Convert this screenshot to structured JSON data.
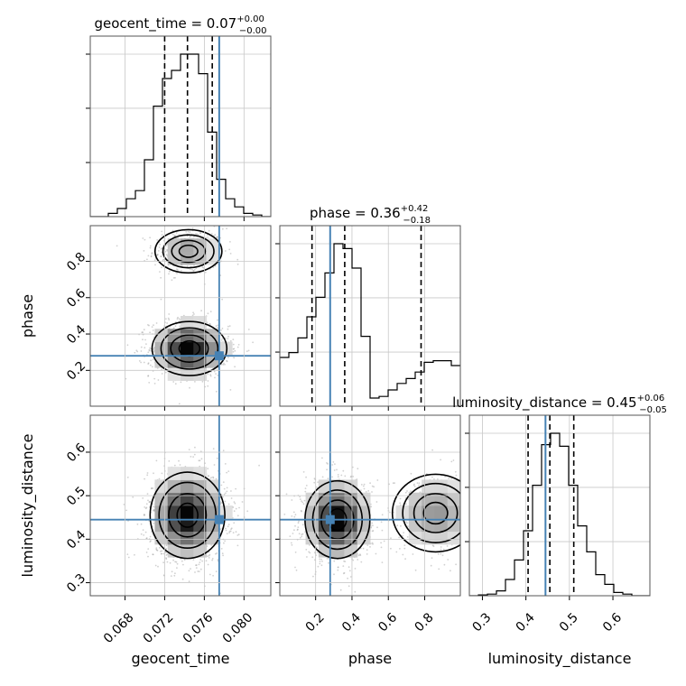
{
  "chart_data": {
    "type": "corner",
    "colors": {
      "truth": "#4682b4",
      "hist": "#000000",
      "grid": "#c8c8c8",
      "points": "#9a9a9a"
    },
    "parameters": [
      {
        "name": "geocent_time",
        "xlabel": "geocent_time",
        "ylabel": "",
        "range": [
          0.0645,
          0.0827
        ],
        "ticks": [
          0.068,
          0.072,
          0.076,
          0.08
        ],
        "tick_labels": [
          "0.068",
          "0.072",
          "0.076",
          "0.080"
        ],
        "truth": 0.0775,
        "quantiles": [
          0.072,
          0.0743,
          0.0768
        ],
        "title": {
          "main": "geocent_time = 0.07",
          "sup": "+0.00",
          "sub": "−0.00"
        },
        "hist_edges_range": [
          0.0645,
          0.0827
        ],
        "hist_values": [
          0,
          0,
          0.02,
          0.05,
          0.11,
          0.16,
          0.35,
          0.68,
          0.85,
          0.9,
          1.0,
          1.0,
          0.88,
          0.52,
          0.23,
          0.11,
          0.06,
          0.02,
          0.01,
          0
        ]
      },
      {
        "name": "phase",
        "xlabel": "phase",
        "ylabel": "phase",
        "range": [
          0.003,
          0.996
        ],
        "ticks": [
          0.2,
          0.4,
          0.6,
          0.8
        ],
        "tick_labels": [
          "0.2",
          "0.4",
          "0.6",
          "0.8"
        ],
        "truth": 0.28,
        "quantiles": [
          0.18,
          0.36,
          0.78
        ],
        "title": {
          "main": "phase = 0.36",
          "sup": "+0.42",
          "sub": "−0.18"
        },
        "hist_edges_range": [
          0.003,
          0.996
        ],
        "hist_values": [
          0.3,
          0.33,
          0.42,
          0.55,
          0.67,
          0.82,
          1.0,
          0.97,
          0.85,
          0.43,
          0.05,
          0.06,
          0.1,
          0.14,
          0.17,
          0.21,
          0.27,
          0.28,
          0.28,
          0.25
        ]
      },
      {
        "name": "luminosity_distance",
        "xlabel": "luminosity_distance",
        "ylabel": "luminosity_distance",
        "range": [
          0.27,
          0.685
        ],
        "ticks": [
          0.3,
          0.4,
          0.5,
          0.6
        ],
        "tick_labels": [
          "0.3",
          "0.4",
          "0.5",
          "0.6"
        ],
        "truth": 0.445,
        "quantiles": [
          0.405,
          0.455,
          0.51
        ],
        "title": {
          "main": "luminosity_distance = 0.45",
          "sup": "+0.06",
          "sub": "−0.05"
        },
        "hist_edges_range": [
          0.27,
          0.685
        ],
        "hist_values": [
          0,
          0.005,
          0.01,
          0.03,
          0.1,
          0.22,
          0.4,
          0.68,
          0.93,
          1.0,
          0.92,
          0.68,
          0.43,
          0.27,
          0.13,
          0.07,
          0.02,
          0.01,
          0,
          0
        ]
      }
    ],
    "pairs": [
      {
        "x": "geocent_time",
        "y": "phase",
        "modes": [
          {
            "mx": 0.0744,
            "my": 0.855,
            "sx": 0.0017,
            "sy": 0.06,
            "weight": 0.3
          },
          {
            "mx": 0.0745,
            "my": 0.32,
            "sx": 0.0019,
            "sy": 0.075,
            "weight": 0.7
          }
        ]
      },
      {
        "x": "geocent_time",
        "y": "luminosity_distance",
        "modes": [
          {
            "mx": 0.0743,
            "my": 0.455,
            "sx": 0.0019,
            "sy": 0.05,
            "weight": 1.0
          }
        ]
      },
      {
        "x": "phase",
        "y": "luminosity_distance",
        "modes": [
          {
            "mx": 0.32,
            "my": 0.445,
            "sx": 0.09,
            "sy": 0.045,
            "weight": 0.7
          },
          {
            "mx": 0.86,
            "my": 0.46,
            "sx": 0.12,
            "sy": 0.045,
            "weight": 0.3
          }
        ]
      }
    ]
  }
}
